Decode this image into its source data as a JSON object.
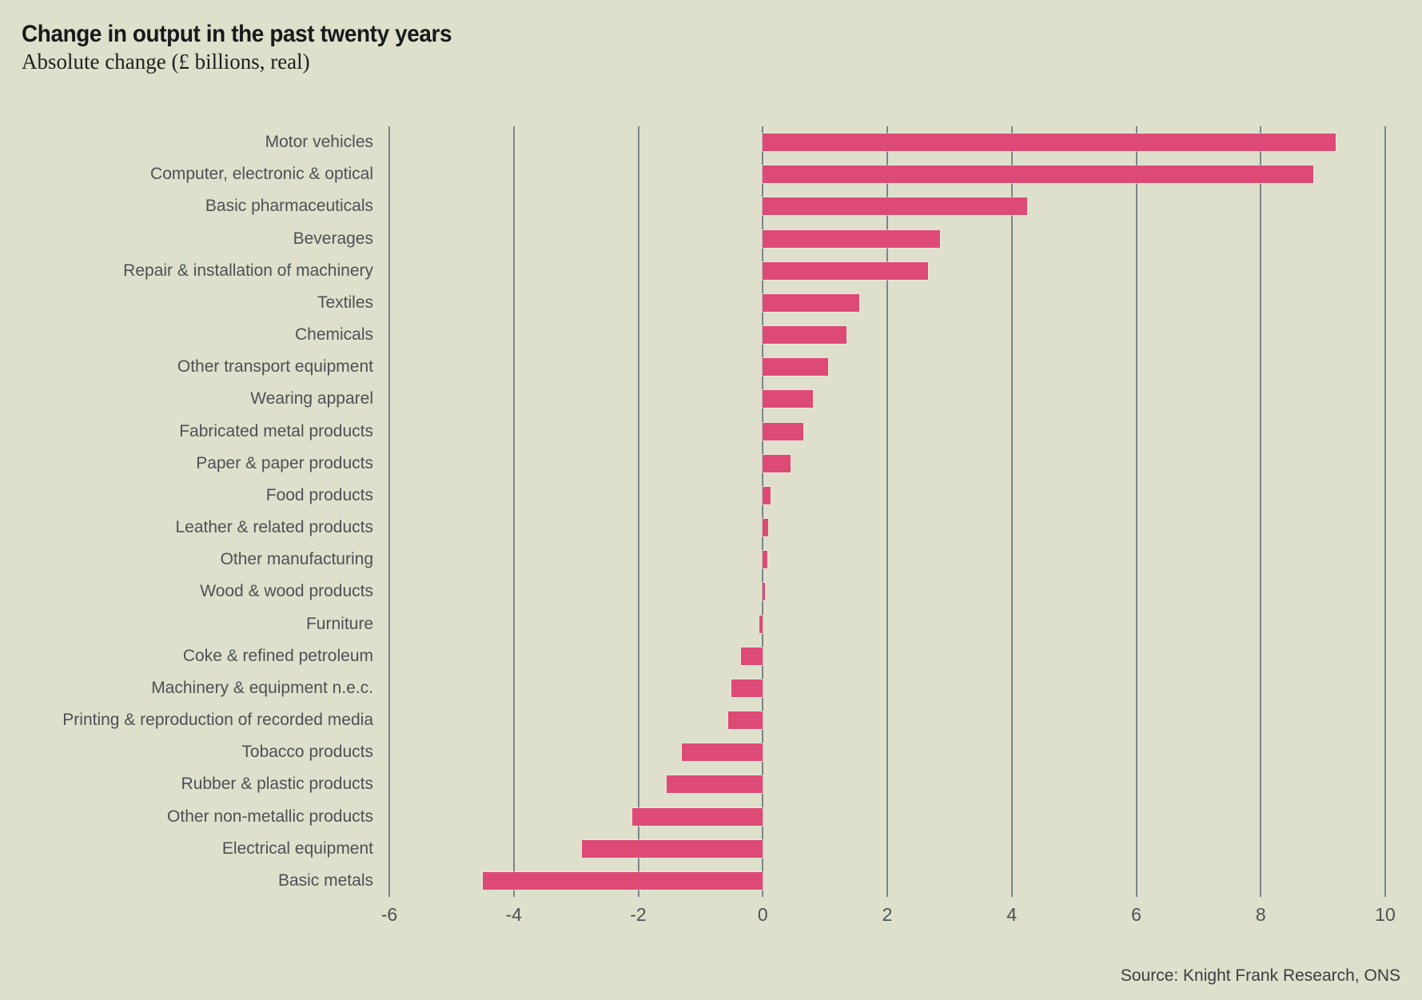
{
  "header": {
    "title": "Change in output in the past twenty years",
    "subtitle": "Absolute change (£ billions, real)"
  },
  "footer": {
    "source": "Source: Knight Frank Research, ONS"
  },
  "colors": {
    "background": "#dee0cb",
    "bar": "#dd4a76",
    "gridline": "#7b848c",
    "label_text": "#4b5157",
    "title_text": "#17191b",
    "source_text": "#383e43"
  },
  "chart_data": {
    "type": "bar",
    "orientation": "horizontal",
    "title": "Change in output in the past twenty years",
    "subtitle": "Absolute change (£ billions, real)",
    "xlabel": "Absolute change (£ billions, real)",
    "ylabel": "",
    "xlim": [
      -6,
      10
    ],
    "xticks": [
      -6,
      -4,
      -2,
      0,
      2,
      4,
      6,
      8,
      10
    ],
    "grid": "vertical",
    "legend": "none",
    "categories": [
      "Motor vehicles",
      "Computer, electronic & optical",
      "Basic pharmaceuticals",
      "Beverages",
      "Repair & installation of machinery",
      "Textiles",
      "Chemicals",
      "Other transport equipment",
      "Wearing apparel",
      "Fabricated metal products",
      "Paper & paper products",
      "Food products",
      "Leather & related products",
      "Other manufacturing",
      "Wood & wood products",
      "Furniture",
      "Coke & refined petroleum",
      "Machinery & equipment n.e.c.",
      "Printing & reproduction of recorded media",
      "Tobacco products",
      "Rubber & plastic products",
      "Other non-metallic products",
      "Electrical equipment",
      "Basic metals"
    ],
    "values": [
      9.2,
      8.85,
      4.25,
      2.85,
      2.65,
      1.55,
      1.35,
      1.05,
      0.8,
      0.65,
      0.45,
      0.12,
      0.09,
      0.07,
      0.04,
      -0.06,
      -0.35,
      -0.5,
      -0.55,
      -1.3,
      -1.55,
      -2.1,
      -2.9,
      -4.5
    ],
    "bar_color": "#dd4a76",
    "source": "Source: Knight Frank Research, ONS"
  }
}
